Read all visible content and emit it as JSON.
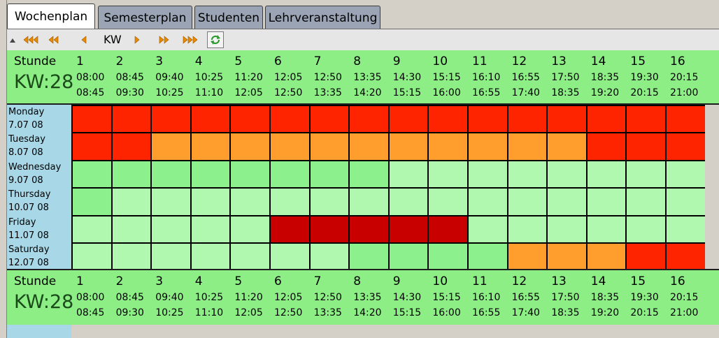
{
  "tabs": [
    {
      "label": "Wochenplan",
      "active": true
    },
    {
      "label": "Semesterplan",
      "active": false
    },
    {
      "label": "Studenten",
      "active": false
    },
    {
      "label": "Lehrveranstaltung",
      "active": false
    }
  ],
  "toolbar": {
    "kw_label": "KW",
    "buttons": [
      {
        "name": "first-icon",
        "glyph": "triple-left"
      },
      {
        "name": "fast-back-icon",
        "glyph": "double-left"
      },
      {
        "name": "back-icon",
        "glyph": "single-left"
      },
      {
        "name": "forward-icon",
        "glyph": "single-right"
      },
      {
        "name": "fast-forward-icon",
        "glyph": "double-right"
      },
      {
        "name": "last-icon",
        "glyph": "triple-right"
      },
      {
        "name": "refresh-icon",
        "glyph": "refresh"
      }
    ],
    "arrow_color": "#e68a00",
    "refresh_color": "#2e9a2e"
  },
  "header": {
    "stunde_label": "Stunde",
    "week_label": "KW:28",
    "periods": [
      {
        "num": "1",
        "start": "08:00",
        "end": "08:45"
      },
      {
        "num": "2",
        "start": "08:45",
        "end": "09:30"
      },
      {
        "num": "3",
        "start": "09:40",
        "end": "10:25"
      },
      {
        "num": "4",
        "start": "10:25",
        "end": "11:10"
      },
      {
        "num": "5",
        "start": "11:20",
        "end": "12:05"
      },
      {
        "num": "6",
        "start": "12:05",
        "end": "12:50"
      },
      {
        "num": "7",
        "start": "12:50",
        "end": "13:35"
      },
      {
        "num": "8",
        "start": "13:35",
        "end": "14:20"
      },
      {
        "num": "9",
        "start": "14:30",
        "end": "15:15"
      },
      {
        "num": "10",
        "start": "15:15",
        "end": "16:00"
      },
      {
        "num": "11",
        "start": "16:10",
        "end": "16:55"
      },
      {
        "num": "12",
        "start": "16:55",
        "end": "17:40"
      },
      {
        "num": "13",
        "start": "17:50",
        "end": "18:35"
      },
      {
        "num": "14",
        "start": "18:35",
        "end": "19:20"
      },
      {
        "num": "15",
        "start": "19:30",
        "end": "20:15"
      },
      {
        "num": "16",
        "start": "20:15",
        "end": "21:00"
      }
    ]
  },
  "days": [
    {
      "name": "Monday",
      "date": "7.07 08"
    },
    {
      "name": "Tuesday",
      "date": "8.07 08"
    },
    {
      "name": "Wednesday",
      "date": "9.07 08"
    },
    {
      "name": "Thursday",
      "date": "10.07 08"
    },
    {
      "name": "Friday",
      "date": "11.07 08"
    },
    {
      "name": "Saturday",
      "date": "12.07 08"
    }
  ],
  "status_colors": {
    "R": "#ff2400",
    "D": "#c80000",
    "O": "#ff9e2c",
    "G": "#8cf08c",
    "L": "#b0f8b0"
  },
  "grid": [
    [
      "R",
      "R",
      "R",
      "R",
      "R",
      "R",
      "R",
      "R",
      "R",
      "R",
      "R",
      "R",
      "R",
      "R",
      "R",
      "R"
    ],
    [
      "R",
      "R",
      "O",
      "O",
      "O",
      "O",
      "O",
      "O",
      "O",
      "O",
      "O",
      "O",
      "O",
      "R",
      "R",
      "R"
    ],
    [
      "G",
      "G",
      "G",
      "G",
      "G",
      "G",
      "G",
      "G",
      "L",
      "L",
      "L",
      "L",
      "L",
      "L",
      "L",
      "L"
    ],
    [
      "G",
      "L",
      "L",
      "L",
      "L",
      "L",
      "L",
      "L",
      "L",
      "L",
      "L",
      "L",
      "L",
      "L",
      "L",
      "L"
    ],
    [
      "L",
      "L",
      "L",
      "L",
      "L",
      "D",
      "D",
      "D",
      "D",
      "D",
      "L",
      "L",
      "L",
      "L",
      "L",
      "L"
    ],
    [
      "L",
      "L",
      "L",
      "L",
      "L",
      "L",
      "L",
      "G",
      "G",
      "G",
      "G",
      "O",
      "O",
      "O",
      "R",
      "R"
    ]
  ]
}
